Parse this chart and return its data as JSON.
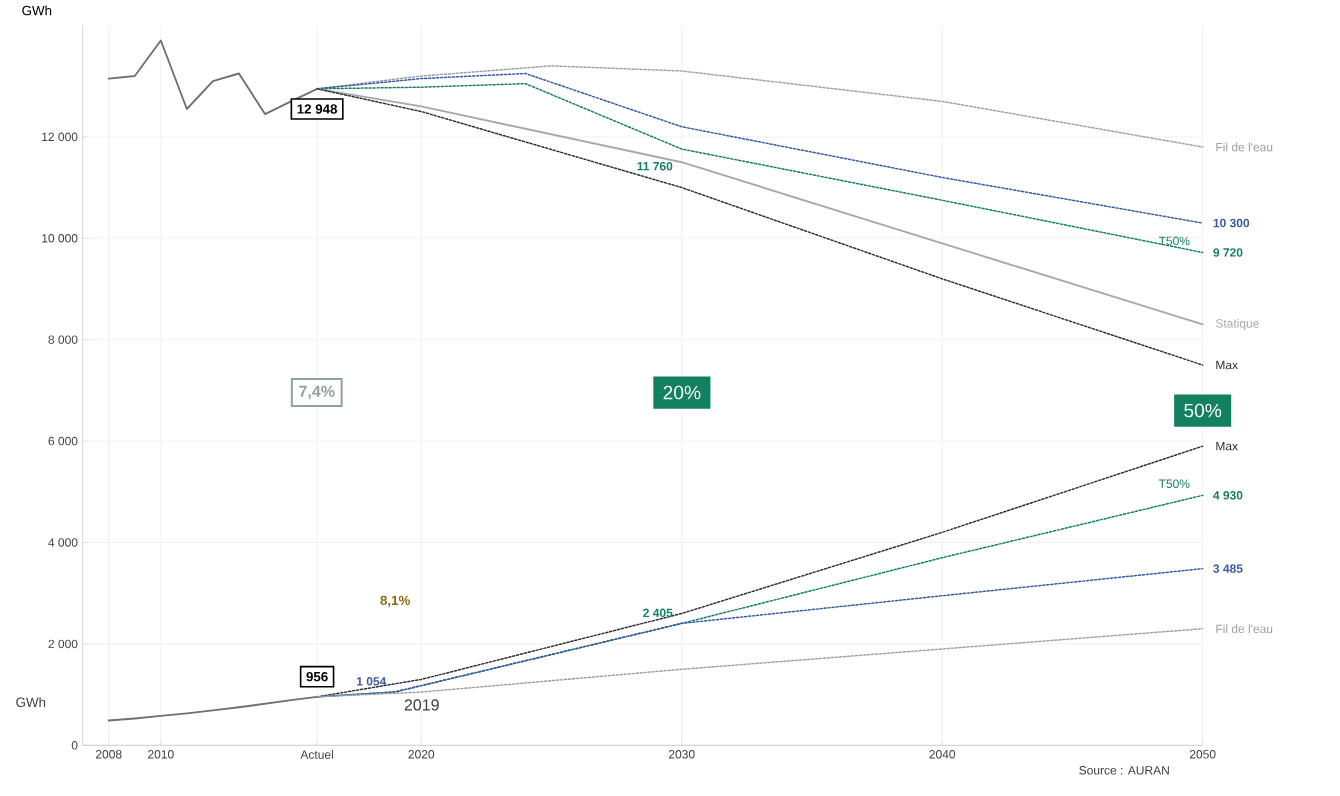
{
  "chart_data": {
    "type": "line",
    "ylabel": "GWh",
    "xlim": [
      2007,
      2050
    ],
    "ylim": [
      0,
      14200
    ],
    "xticks": [
      2008,
      2010,
      {
        "value": 2016,
        "label": "Actuel"
      },
      2020,
      2030,
      2040,
      2050
    ],
    "yticks": [
      0,
      {
        "value": 2000,
        "label": "2 000"
      },
      {
        "value": 4000,
        "label": "4 000"
      },
      {
        "value": 6000,
        "label": "6 000"
      },
      {
        "value": 8000,
        "label": "8 000"
      },
      {
        "value": 10000,
        "label": "10 000"
      },
      {
        "value": 12000,
        "label": "12 000"
      }
    ],
    "grid": true,
    "marker": "none",
    "series": [
      {
        "color": "#707070",
        "line_style": "solid",
        "x": [
          2008,
          2009,
          2010,
          2011,
          2012,
          2013,
          2014,
          2015,
          2016
        ],
        "values": [
          13150,
          13200,
          13900,
          12550,
          13100,
          13250,
          12450,
          12700,
          12948
        ],
        "value_labels": [
          null,
          null,
          null,
          null,
          null,
          null,
          null,
          null,
          "12 948"
        ]
      },
      {
        "color": "#707070",
        "line_style": "solid",
        "x": [
          2008,
          2009,
          2010,
          2011,
          2012,
          2013,
          2014,
          2015,
          2016
        ],
        "values": [
          490,
          530,
          580,
          630,
          690,
          750,
          820,
          890,
          956
        ],
        "value_labels": [
          null,
          null,
          null,
          null,
          null,
          null,
          null,
          null,
          "956"
        ]
      },
      {
        "name": "Fil de l'eau",
        "color": "#a0a0a0",
        "line_style": "dotted",
        "x": [
          2016,
          2020,
          2025,
          2030,
          2040,
          2050
        ],
        "values": [
          12948,
          13200,
          13400,
          13300,
          12700,
          11800
        ]
      },
      {
        "color": "#3a5aa0",
        "line_style": "dotted",
        "x": [
          2016,
          2020,
          2024,
          2030,
          2040,
          2050
        ],
        "values": [
          12948,
          13150,
          13250,
          12200,
          11200,
          10300
        ],
        "value_labels": [
          null,
          null,
          null,
          null,
          null,
          "10 300"
        ]
      },
      {
        "name": "T50%",
        "color": "#138060",
        "line_style": "dotted",
        "x": [
          2016,
          2020,
          2024,
          2030,
          2040,
          2050
        ],
        "values": [
          12948,
          12980,
          13050,
          11760,
          10750,
          9720
        ],
        "value_labels": [
          null,
          null,
          null,
          "11 760",
          null,
          "9 720"
        ]
      },
      {
        "name": "Statique",
        "color": "#a8a8a8",
        "line_style": "solid",
        "x": [
          2016,
          2020,
          2030,
          2040,
          2050
        ],
        "values": [
          12948,
          12600,
          11500,
          9900,
          8300
        ]
      },
      {
        "name": "Max",
        "color": "#303030",
        "line_style": "dotted",
        "x": [
          2016,
          2020,
          2030,
          2040,
          2050
        ],
        "values": [
          12948,
          12500,
          11000,
          9200,
          7500
        ]
      },
      {
        "name": "Max",
        "color": "#303030",
        "line_style": "dotted",
        "x": [
          2016,
          2020,
          2030,
          2040,
          2050
        ],
        "values": [
          956,
          1300,
          2600,
          4200,
          5900
        ]
      },
      {
        "name": "T50%",
        "color": "#138060",
        "line_style": "dotted",
        "x": [
          2016,
          2019,
          2030,
          2040,
          2050
        ],
        "values": [
          956,
          1054,
          2405,
          3700,
          4930
        ],
        "value_labels": [
          null,
          null,
          "2 405",
          null,
          "4 930"
        ]
      },
      {
        "color": "#3a5aa0",
        "line_style": "dotted",
        "x": [
          2016,
          2019,
          2030,
          2040,
          2050
        ],
        "values": [
          956,
          1054,
          2405,
          2950,
          3485
        ],
        "value_labels": [
          null,
          "1 054",
          null,
          null,
          "3 485"
        ]
      },
      {
        "name": "Fil de l'eau",
        "color": "#a0a0a0",
        "line_style": "dotted",
        "x": [
          2016,
          2020,
          2030,
          2040,
          2050
        ],
        "values": [
          956,
          1050,
          1500,
          1900,
          2300
        ]
      }
    ],
    "annotations": [
      "7,4%",
      "20%",
      "50%",
      "8,1%",
      {
        "text": "2019",
        "x": 2019,
        "y": 1054
      },
      "Source : AURAN",
      "GWh"
    ]
  }
}
